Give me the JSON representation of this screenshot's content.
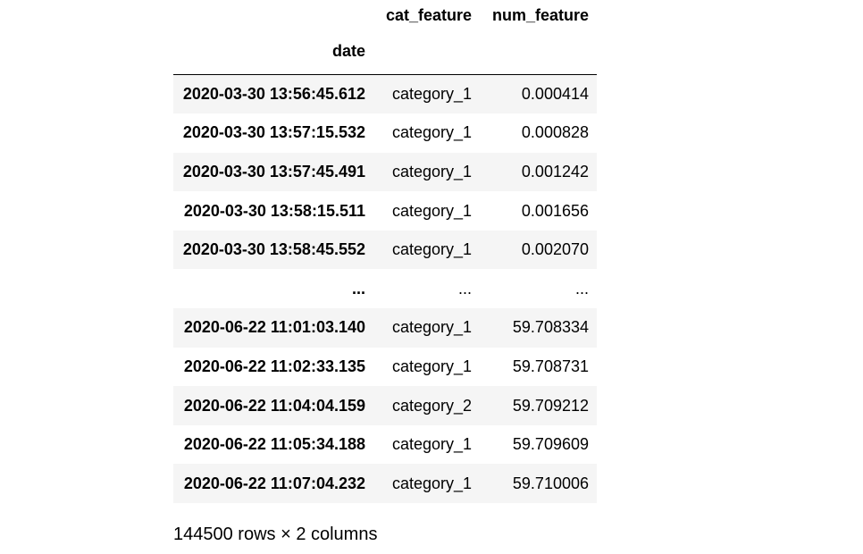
{
  "table": {
    "columns": [
      "cat_feature",
      "num_feature"
    ],
    "index_name": "date",
    "rows": [
      {
        "index": "2020-03-30 13:56:45.612",
        "cat_feature": "category_1",
        "num_feature": "0.000414"
      },
      {
        "index": "2020-03-30 13:57:15.532",
        "cat_feature": "category_1",
        "num_feature": "0.000828"
      },
      {
        "index": "2020-03-30 13:57:45.491",
        "cat_feature": "category_1",
        "num_feature": "0.001242"
      },
      {
        "index": "2020-03-30 13:58:15.511",
        "cat_feature": "category_1",
        "num_feature": "0.001656"
      },
      {
        "index": "2020-03-30 13:58:45.552",
        "cat_feature": "category_1",
        "num_feature": "0.002070"
      },
      {
        "index": "...",
        "cat_feature": "...",
        "num_feature": "..."
      },
      {
        "index": "2020-06-22 11:01:03.140",
        "cat_feature": "category_1",
        "num_feature": "59.708334"
      },
      {
        "index": "2020-06-22 11:02:33.135",
        "cat_feature": "category_1",
        "num_feature": "59.708731"
      },
      {
        "index": "2020-06-22 11:04:04.159",
        "cat_feature": "category_2",
        "num_feature": "59.709212"
      },
      {
        "index": "2020-06-22 11:05:34.188",
        "cat_feature": "category_1",
        "num_feature": "59.709609"
      },
      {
        "index": "2020-06-22 11:07:04.232",
        "cat_feature": "category_1",
        "num_feature": "59.710006"
      }
    ]
  },
  "footer": {
    "shape_text": "144500 rows × 2 columns"
  }
}
